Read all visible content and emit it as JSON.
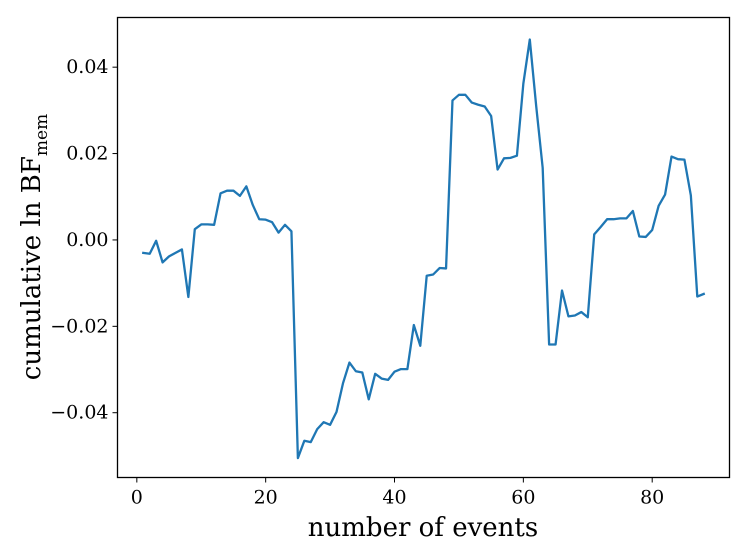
{
  "chart_data": {
    "type": "line",
    "xlabel": "number of events",
    "ylabel": {
      "main": "cumulative ln BF",
      "subscript": "mem"
    },
    "xlim": [
      -3,
      92
    ],
    "ylim": [
      -0.055,
      0.0515
    ],
    "x_ticks": [
      0,
      20,
      40,
      60,
      80
    ],
    "x_tick_labels": [
      "0",
      "20",
      "40",
      "60",
      "80"
    ],
    "y_ticks": [
      -0.04,
      -0.02,
      0.0,
      0.02,
      0.04
    ],
    "y_tick_labels": [
      "−0.04",
      "−0.02",
      "0.00",
      "0.02",
      "0.04"
    ],
    "grid": false,
    "series": [
      {
        "color": "#1f77b4",
        "x": [
          1,
          2,
          3,
          4,
          5,
          6,
          7,
          8,
          9,
          10,
          11,
          12,
          13,
          14,
          15,
          16,
          17,
          18,
          19,
          20,
          21,
          22,
          23,
          24,
          25,
          26,
          27,
          28,
          29,
          30,
          31,
          32,
          33,
          34,
          35,
          36,
          37,
          38,
          39,
          40,
          41,
          42,
          43,
          44,
          45,
          46,
          47,
          48,
          49,
          50,
          51,
          52,
          53,
          54,
          55,
          56,
          57,
          58,
          59,
          60,
          61,
          62,
          63,
          64,
          65,
          66,
          67,
          68,
          69,
          70,
          71,
          72,
          73,
          74,
          75,
          76,
          77,
          78,
          79,
          80,
          81,
          82,
          83,
          84,
          85,
          86,
          87,
          88
        ],
        "y": [
          -0.003,
          -0.0032,
          -0.0002,
          -0.0052,
          -0.0038,
          -0.003,
          -0.0022,
          -0.0132,
          0.0025,
          0.0036,
          0.0036,
          0.0035,
          0.0108,
          0.0114,
          0.0114,
          0.0102,
          0.0124,
          0.0081,
          0.0048,
          0.0047,
          0.0041,
          0.0017,
          0.0035,
          0.002,
          -0.0505,
          -0.0465,
          -0.0468,
          -0.0438,
          -0.0422,
          -0.0428,
          -0.0398,
          -0.0332,
          -0.0284,
          -0.0304,
          -0.0307,
          -0.0369,
          -0.031,
          -0.0321,
          -0.0324,
          -0.0305,
          -0.0299,
          -0.0299,
          -0.0197,
          -0.0245,
          -0.0083,
          -0.008,
          -0.0065,
          -0.0066,
          0.0323,
          0.0336,
          0.0336,
          0.0318,
          0.0313,
          0.0309,
          0.0287,
          0.0163,
          0.0189,
          0.019,
          0.0195,
          0.0362,
          0.0464,
          0.0309,
          0.0167,
          -0.0242,
          -0.0242,
          -0.0117,
          -0.0177,
          -0.0175,
          -0.0167,
          -0.0179,
          0.0013,
          0.003,
          0.0048,
          0.0048,
          0.005,
          0.005,
          0.0067,
          0.0008,
          0.0007,
          0.0023,
          0.0079,
          0.0105,
          0.0193,
          0.0187,
          0.0186,
          0.0103,
          -0.0131,
          -0.0125
        ]
      }
    ]
  }
}
